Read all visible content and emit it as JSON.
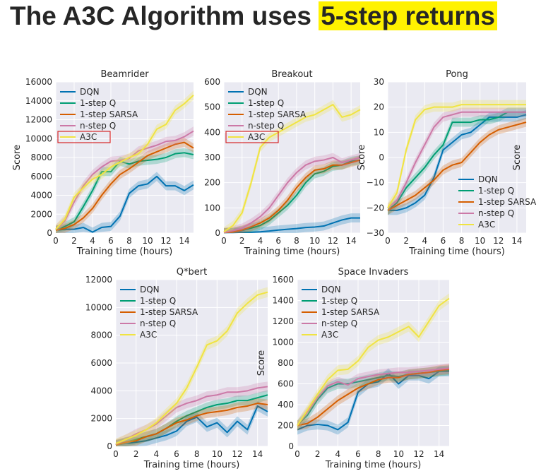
{
  "slide": {
    "title_prefix": "The A3C Algorithm uses",
    "title_highlight": "5-step returns"
  },
  "colors": {
    "DQN": "#0072b2",
    "1-step Q": "#009e73",
    "1-step SARSA": "#d55e00",
    "n-step Q": "#cc79a7",
    "A3C": "#f0e442",
    "plot_bg": "#eaeaf2",
    "grid": "#ffffff",
    "highlight_box": "#d62728",
    "title_highlight": "#fff200"
  },
  "chart_data": [
    {
      "type": "line",
      "title": "Beamrider",
      "xlabel": "Training time (hours)",
      "ylabel": "Score",
      "xlim": [
        0,
        15
      ],
      "ylim": [
        0,
        16000
      ],
      "xticks": [
        "0",
        "2",
        "4",
        "6",
        "8",
        "10",
        "12",
        "14"
      ],
      "yticks": [
        "0",
        "2000",
        "4000",
        "6000",
        "8000",
        "10000",
        "12000",
        "14000",
        "16000"
      ],
      "legend_loc": "upper-left",
      "legend_highlight": "A3C",
      "grid": true,
      "series": [
        {
          "name": "DQN",
          "x": [
            0,
            1,
            2,
            3,
            4,
            5,
            6,
            7,
            8,
            9,
            10,
            11,
            12,
            13,
            14,
            15
          ],
          "y": [
            300,
            400,
            400,
            600,
            100,
            600,
            700,
            1800,
            4200,
            5000,
            5200,
            6000,
            5000,
            5000,
            4500,
            5100
          ]
        },
        {
          "name": "1-step Q",
          "x": [
            0,
            1,
            2,
            3,
            4,
            5,
            6,
            7,
            8,
            9,
            10,
            11,
            12,
            13,
            14,
            15
          ],
          "y": [
            300,
            700,
            1200,
            2800,
            4500,
            6500,
            6500,
            7600,
            7300,
            7600,
            7700,
            7800,
            8000,
            8400,
            8500,
            8300
          ]
        },
        {
          "name": "1-step SARSA",
          "x": [
            0,
            1,
            2,
            3,
            4,
            5,
            6,
            7,
            8,
            9,
            10,
            11,
            12,
            13,
            14,
            15
          ],
          "y": [
            300,
            500,
            900,
            1600,
            2600,
            4000,
            5200,
            6200,
            6800,
            7500,
            8200,
            8600,
            9000,
            9400,
            9600,
            9000
          ]
        },
        {
          "name": "n-step Q",
          "x": [
            0,
            1,
            2,
            3,
            4,
            5,
            6,
            7,
            8,
            9,
            10,
            11,
            12,
            13,
            14,
            15
          ],
          "y": [
            400,
            1300,
            3300,
            5000,
            6200,
            7000,
            7600,
            7700,
            7900,
            8700,
            9000,
            9300,
            9700,
            9800,
            10200,
            10800
          ]
        },
        {
          "name": "A3C",
          "x": [
            0,
            1,
            2,
            3,
            4,
            5,
            6,
            7,
            8,
            9,
            10,
            11,
            12,
            13,
            14,
            15
          ],
          "y": [
            400,
            1500,
            3800,
            4800,
            5700,
            6200,
            7000,
            7500,
            8000,
            8400,
            9400,
            11000,
            11500,
            13000,
            13700,
            14600
          ]
        }
      ]
    },
    {
      "type": "line",
      "title": "Breakout",
      "xlabel": "Training time (hours)",
      "ylabel": "Score",
      "xlim": [
        0,
        15
      ],
      "ylim": [
        0,
        600
      ],
      "xticks": [
        "0",
        "2",
        "4",
        "6",
        "8",
        "10",
        "12",
        "14"
      ],
      "yticks": [
        "0",
        "100",
        "200",
        "300",
        "400",
        "500",
        "600"
      ],
      "legend_loc": "upper-left",
      "legend_highlight": "A3C",
      "grid": true,
      "series": [
        {
          "name": "DQN",
          "x": [
            0,
            1,
            2,
            3,
            4,
            5,
            6,
            7,
            8,
            9,
            10,
            11,
            12,
            13,
            14,
            15
          ],
          "y": [
            2,
            2,
            3,
            3,
            5,
            8,
            12,
            15,
            18,
            22,
            24,
            28,
            40,
            52,
            60,
            60
          ]
        },
        {
          "name": "1-step Q",
          "x": [
            0,
            1,
            2,
            3,
            4,
            5,
            6,
            7,
            8,
            9,
            10,
            11,
            12,
            13,
            14,
            15
          ],
          "y": [
            2,
            3,
            10,
            20,
            30,
            50,
            80,
            110,
            150,
            200,
            235,
            245,
            265,
            270,
            285,
            290
          ]
        },
        {
          "name": "1-step SARSA",
          "x": [
            0,
            1,
            2,
            3,
            4,
            5,
            6,
            7,
            8,
            9,
            10,
            11,
            12,
            13,
            14,
            15
          ],
          "y": [
            2,
            4,
            12,
            25,
            40,
            60,
            90,
            130,
            180,
            220,
            250,
            255,
            270,
            270,
            280,
            290
          ]
        },
        {
          "name": "n-step Q",
          "x": [
            0,
            1,
            2,
            3,
            4,
            5,
            6,
            7,
            8,
            9,
            10,
            11,
            12,
            13,
            14,
            15
          ],
          "y": [
            2,
            10,
            20,
            40,
            65,
            100,
            150,
            200,
            240,
            270,
            285,
            290,
            300,
            280,
            290,
            300
          ]
        },
        {
          "name": "A3C",
          "x": [
            0,
            1,
            2,
            3,
            4,
            5,
            6,
            7,
            8,
            9,
            10,
            11,
            12,
            13,
            14,
            15
          ],
          "y": [
            5,
            30,
            80,
            200,
            340,
            380,
            400,
            420,
            440,
            460,
            470,
            490,
            510,
            460,
            470,
            490
          ]
        }
      ]
    },
    {
      "type": "line",
      "title": "Pong",
      "xlabel": "Training time (hours)",
      "ylabel": "Score",
      "xlim": [
        0,
        15
      ],
      "ylim": [
        -30,
        30
      ],
      "xticks": [
        "0",
        "2",
        "4",
        "6",
        "8",
        "10",
        "12",
        "14"
      ],
      "yticks": [
        "−30",
        "−20",
        "−10",
        "0",
        "10",
        "20",
        "30"
      ],
      "legend_loc": "lower-right",
      "grid": true,
      "series": [
        {
          "name": "DQN",
          "x": [
            0,
            1,
            2,
            3,
            4,
            5,
            6,
            7,
            8,
            9,
            10,
            11,
            12,
            13,
            14,
            15
          ],
          "y": [
            -21,
            -21,
            -20,
            -18,
            -15,
            -8,
            3,
            6,
            9,
            10,
            13,
            16,
            16,
            16,
            16,
            17
          ]
        },
        {
          "name": "1-step Q",
          "x": [
            0,
            1,
            2,
            3,
            4,
            5,
            6,
            7,
            8,
            9,
            10,
            11,
            12,
            13,
            14,
            15
          ],
          "y": [
            -21,
            -18,
            -12,
            -8,
            -4,
            1,
            5,
            14,
            14,
            14,
            15,
            15,
            16,
            18,
            18,
            18
          ]
        },
        {
          "name": "1-step SARSA",
          "x": [
            0,
            1,
            2,
            3,
            4,
            5,
            6,
            7,
            8,
            9,
            10,
            11,
            12,
            13,
            14,
            15
          ],
          "y": [
            -21,
            -19,
            -17,
            -15,
            -12,
            -9,
            -5,
            -3,
            -2,
            2,
            6,
            9,
            11,
            12,
            13,
            14
          ]
        },
        {
          "name": "n-step Q",
          "x": [
            0,
            1,
            2,
            3,
            4,
            5,
            6,
            7,
            8,
            9,
            10,
            11,
            12,
            13,
            14,
            15
          ],
          "y": [
            -20,
            -17,
            -10,
            -2,
            5,
            12,
            16,
            17,
            18,
            18,
            18,
            18,
            18,
            18,
            18,
            18
          ]
        },
        {
          "name": "A3C",
          "x": [
            0,
            1,
            2,
            3,
            4,
            5,
            6,
            7,
            8,
            9,
            10,
            11,
            12,
            13,
            14,
            15
          ],
          "y": [
            -20,
            -14,
            3,
            15,
            19,
            20,
            20,
            20,
            21,
            21,
            21,
            21,
            21,
            21,
            21,
            21
          ]
        }
      ]
    },
    {
      "type": "line",
      "title": "Q*bert",
      "xlabel": "Training time (hours)",
      "ylabel": "",
      "xlim": [
        0,
        15
      ],
      "ylim": [
        0,
        12000
      ],
      "xticks": [
        "0",
        "2",
        "4",
        "6",
        "8",
        "10",
        "12",
        "14"
      ],
      "yticks": [
        "0",
        "2000",
        "4000",
        "6000",
        "8000",
        "10000",
        "12000"
      ],
      "legend_loc": "upper-left",
      "grid": true,
      "series": [
        {
          "name": "DQN",
          "x": [
            0,
            1,
            2,
            3,
            4,
            5,
            6,
            7,
            8,
            9,
            10,
            11,
            12,
            13,
            14,
            15
          ],
          "y": [
            100,
            200,
            300,
            400,
            600,
            800,
            1100,
            1800,
            2100,
            1400,
            1700,
            1000,
            1800,
            1200,
            2900,
            2500
          ]
        },
        {
          "name": "1-step Q",
          "x": [
            0,
            1,
            2,
            3,
            4,
            5,
            6,
            7,
            8,
            9,
            10,
            11,
            12,
            13,
            14,
            15
          ],
          "y": [
            100,
            300,
            500,
            700,
            900,
            1300,
            1800,
            2200,
            2500,
            2800,
            3000,
            3100,
            3300,
            3300,
            3500,
            3700
          ]
        },
        {
          "name": "1-step SARSA",
          "x": [
            0,
            1,
            2,
            3,
            4,
            5,
            6,
            7,
            8,
            9,
            10,
            11,
            12,
            13,
            14,
            15
          ],
          "y": [
            100,
            300,
            400,
            700,
            900,
            1300,
            1700,
            1900,
            2200,
            2400,
            2500,
            2600,
            2800,
            2900,
            3100,
            3000
          ]
        },
        {
          "name": "n-step Q",
          "x": [
            0,
            1,
            2,
            3,
            4,
            5,
            6,
            7,
            8,
            9,
            10,
            11,
            12,
            13,
            14,
            15
          ],
          "y": [
            150,
            500,
            900,
            1200,
            1600,
            2200,
            2800,
            3100,
            3300,
            3600,
            3700,
            3900,
            3900,
            4000,
            4200,
            4300
          ]
        },
        {
          "name": "A3C",
          "x": [
            0,
            1,
            2,
            3,
            4,
            5,
            6,
            7,
            8,
            9,
            10,
            11,
            12,
            13,
            14,
            15
          ],
          "y": [
            200,
            500,
            800,
            1200,
            1700,
            2400,
            3100,
            4200,
            5700,
            7300,
            7600,
            8300,
            9600,
            10300,
            10900,
            11100
          ]
        }
      ]
    },
    {
      "type": "line",
      "title": "Space Invaders",
      "xlabel": "Training time (hours)",
      "ylabel": "Score",
      "xlim": [
        0,
        15
      ],
      "ylim": [
        0,
        1600
      ],
      "xticks": [
        "0",
        "2",
        "4",
        "6",
        "8",
        "10",
        "12",
        "14"
      ],
      "yticks": [
        "0",
        "200",
        "400",
        "600",
        "800",
        "1000",
        "1200",
        "1400",
        "1600"
      ],
      "legend_loc": "upper-left",
      "grid": true,
      "series": [
        {
          "name": "DQN",
          "x": [
            0,
            1,
            2,
            3,
            4,
            5,
            6,
            7,
            8,
            9,
            10,
            11,
            12,
            13,
            14,
            15
          ],
          "y": [
            160,
            200,
            210,
            200,
            160,
            230,
            520,
            600,
            620,
            700,
            600,
            680,
            680,
            650,
            720,
            720
          ]
        },
        {
          "name": "1-step Q",
          "x": [
            0,
            1,
            2,
            3,
            4,
            5,
            6,
            7,
            8,
            9,
            10,
            11,
            12,
            13,
            14,
            15
          ],
          "y": [
            200,
            300,
            450,
            560,
            600,
            600,
            620,
            640,
            660,
            680,
            670,
            690,
            700,
            710,
            720,
            730
          ]
        },
        {
          "name": "1-step SARSA",
          "x": [
            0,
            1,
            2,
            3,
            4,
            5,
            6,
            7,
            8,
            9,
            10,
            11,
            12,
            13,
            14,
            15
          ],
          "y": [
            200,
            220,
            280,
            360,
            440,
            500,
            560,
            600,
            640,
            660,
            660,
            690,
            700,
            710,
            730,
            740
          ]
        },
        {
          "name": "n-step Q",
          "x": [
            0,
            1,
            2,
            3,
            4,
            5,
            6,
            7,
            8,
            9,
            10,
            11,
            12,
            13,
            14,
            15
          ],
          "y": [
            200,
            330,
            470,
            580,
            620,
            590,
            650,
            670,
            690,
            700,
            710,
            710,
            720,
            730,
            740,
            750
          ]
        },
        {
          "name": "A3C",
          "x": [
            0,
            1,
            2,
            3,
            4,
            5,
            6,
            7,
            8,
            9,
            10,
            11,
            12,
            13,
            14,
            15
          ],
          "y": [
            200,
            350,
            500,
            640,
            730,
            740,
            820,
            950,
            1020,
            1050,
            1100,
            1150,
            1050,
            1200,
            1350,
            1420
          ]
        }
      ]
    }
  ]
}
